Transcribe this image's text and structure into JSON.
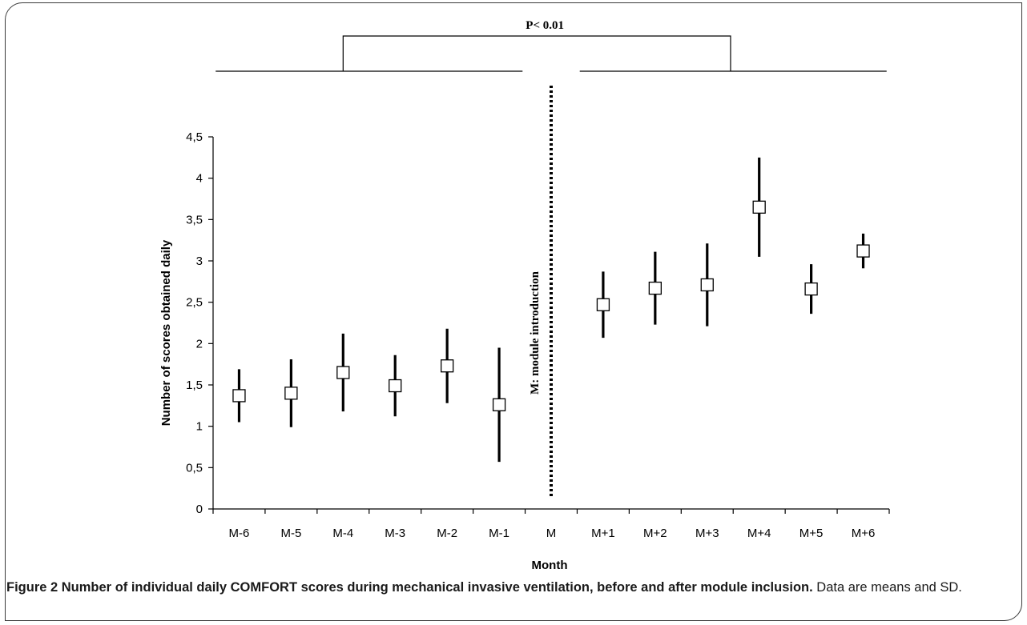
{
  "chart_data": {
    "type": "scatter",
    "xlabel": "Month",
    "ylabel": "Number of scores obtained daily",
    "ylim": [
      0,
      4.5
    ],
    "yticks": [
      "0",
      "0,5",
      "1",
      "1,5",
      "2",
      "2,5",
      "3",
      "3,5",
      "4",
      "4,5"
    ],
    "categories": [
      "M-6",
      "M-5",
      "M-4",
      "M-3",
      "M-2",
      "M-1",
      "M",
      "M+1",
      "M+2",
      "M+3",
      "M+4",
      "M+5",
      "M+6"
    ],
    "points": [
      {
        "x": "M-6",
        "mean": 1.37,
        "sd": 0.32
      },
      {
        "x": "M-5",
        "mean": 1.4,
        "sd": 0.41
      },
      {
        "x": "M-4",
        "mean": 1.65,
        "sd": 0.47
      },
      {
        "x": "M-3",
        "mean": 1.49,
        "sd": 0.37
      },
      {
        "x": "M-2",
        "mean": 1.73,
        "sd": 0.45
      },
      {
        "x": "M-1",
        "mean": 1.26,
        "sd": 0.69
      },
      {
        "x": "M+1",
        "mean": 2.47,
        "sd": 0.4
      },
      {
        "x": "M+2",
        "mean": 2.67,
        "sd": 0.44
      },
      {
        "x": "M+3",
        "mean": 2.71,
        "sd": 0.5
      },
      {
        "x": "M+4",
        "mean": 3.65,
        "sd": 0.6
      },
      {
        "x": "M+5",
        "mean": 2.66,
        "sd": 0.3
      },
      {
        "x": "M+6",
        "mean": 3.12,
        "sd": 0.21
      }
    ],
    "divider": {
      "x": "M",
      "label": "M: module introduction"
    },
    "annotation": "P< 0.01"
  },
  "caption": {
    "lead": "Figure 2 Number of individual daily COMFORT scores during mechanical invasive ventilation, before and after module inclusion.",
    "rest": "Data are means and SD."
  }
}
